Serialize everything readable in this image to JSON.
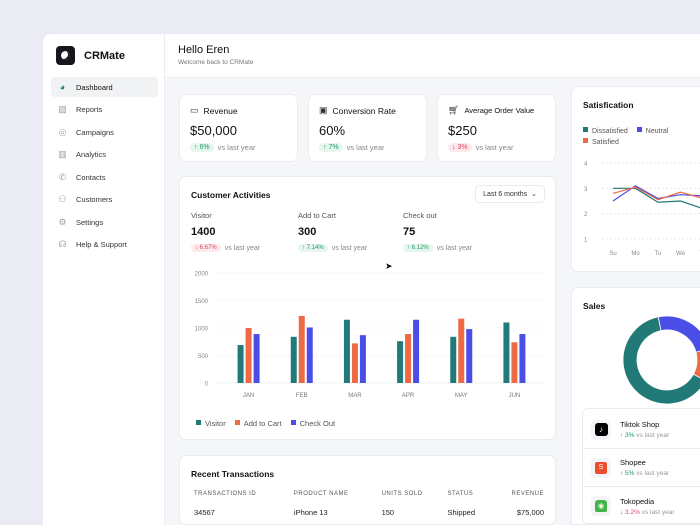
{
  "app": {
    "name": "CRMate"
  },
  "sidebar": {
    "items": [
      {
        "label": "Dashboard",
        "icon": "pie-chart-icon"
      },
      {
        "label": "Reports",
        "icon": "image-report-icon"
      },
      {
        "label": "Campaigns",
        "icon": "target-icon"
      },
      {
        "label": "Analytics",
        "icon": "bar-chart-icon"
      },
      {
        "label": "Contacts",
        "icon": "phone-icon"
      },
      {
        "label": "Customers",
        "icon": "users-icon"
      },
      {
        "label": "Settings",
        "icon": "gear-icon"
      },
      {
        "label": "Help & Support",
        "icon": "headphones-icon"
      }
    ]
  },
  "header": {
    "title": "Hello Eren",
    "subtitle": "Welcome back to CRMate"
  },
  "kpis": [
    {
      "title": "Revenue",
      "value": "$50,000",
      "delta": "↑ 6%",
      "trend": "up",
      "suffix": "vs last year"
    },
    {
      "title": "Conversion Rate",
      "value": "60%",
      "delta": "↑ 7%",
      "trend": "up",
      "suffix": "vs last year"
    },
    {
      "title": "Average Order Value",
      "value": "$250",
      "delta": "↓ 3%",
      "trend": "down",
      "suffix": "vs last year"
    }
  ],
  "activities": {
    "title": "Customer Activities",
    "range": "Last 6 months",
    "metrics": [
      {
        "label": "Visitor",
        "value": "1400",
        "delta": "↓ 6.67%",
        "trend": "down",
        "suffix": "vs last year"
      },
      {
        "label": "Add to Cart",
        "value": "300",
        "delta": "↑ 7.14%",
        "trend": "up",
        "suffix": "vs last year"
      },
      {
        "label": "Check out",
        "value": "75",
        "delta": "↑ 6.12%",
        "trend": "up",
        "suffix": "vs last year"
      }
    ]
  },
  "colors": {
    "teal": "#217a78",
    "orange": "#ee6a45",
    "blue": "#4a4ee6"
  },
  "chart_data": [
    {
      "type": "bar",
      "title": "Customer Activities",
      "categories": [
        "JAN",
        "FEB",
        "MAR",
        "APR",
        "MAY",
        "JUN"
      ],
      "yticks": [
        "0",
        "500",
        "1000",
        "1500",
        "2000"
      ],
      "ylim": [
        0,
        2000
      ],
      "legend": "bottom-left",
      "series": [
        {
          "name": "Visitor",
          "color": "#217a78",
          "values": [
            690,
            840,
            1150,
            760,
            840,
            1100
          ]
        },
        {
          "name": "Add to Cart",
          "color": "#ee6a45",
          "values": [
            1000,
            1220,
            720,
            890,
            1170,
            740
          ]
        },
        {
          "name": "Check Out",
          "color": "#4a4ee6",
          "values": [
            890,
            1010,
            870,
            1150,
            980,
            890
          ]
        }
      ]
    },
    {
      "type": "line",
      "title": "Satisfication",
      "categories": [
        "Su",
        "Mo",
        "Tu",
        "We",
        "Th"
      ],
      "yticks": [
        "1",
        "2",
        "3",
        "4"
      ],
      "ylim": [
        1,
        4
      ],
      "legend": "top-left",
      "series": [
        {
          "name": "Dissatisfied",
          "color": "#217a78",
          "values": [
            3.0,
            3.0,
            2.45,
            2.5,
            2.2
          ]
        },
        {
          "name": "Neutral",
          "color": "#4a4ee6",
          "values": [
            2.5,
            3.1,
            2.6,
            2.75,
            2.7
          ]
        },
        {
          "name": "Satisfied",
          "color": "#ee6a45",
          "values": [
            2.8,
            3.05,
            2.55,
            2.85,
            2.6
          ]
        }
      ]
    },
    {
      "type": "pie",
      "title": "Sales",
      "segments": [
        {
          "color": "#217a78",
          "value": 64
        },
        {
          "color": "#4a4ee6",
          "value": 24
        },
        {
          "color": "#ee6a45",
          "value": 12
        }
      ]
    }
  ],
  "satisfaction": {
    "legend_labels": [
      "Dissatisfied",
      "Neutral",
      "Satisfied"
    ]
  },
  "sales": {
    "title": "Sales",
    "shops": [
      {
        "name": "Tiktok Shop",
        "delta": "↑ 3%",
        "trend": "up",
        "suffix": "vs last year",
        "icon": "tiktok-icon"
      },
      {
        "name": "Shopee",
        "delta": "↑ 5%",
        "trend": "up",
        "suffix": "vs last year",
        "icon": "shopee-icon"
      },
      {
        "name": "Tokopedia",
        "delta": "↓ 3.2%",
        "trend": "down",
        "suffix": "vs last year",
        "icon": "tokopedia-icon"
      }
    ]
  },
  "transactions": {
    "title": "Recent Transactions",
    "columns": [
      "TRANSACTIONS ID",
      "PRODUCT NAME",
      "UNITS SOLD",
      "STATUS",
      "REVENUE"
    ],
    "rows": [
      [
        "34567",
        "iPhone 13",
        "150",
        "Shipped",
        "$75,000"
      ]
    ]
  }
}
